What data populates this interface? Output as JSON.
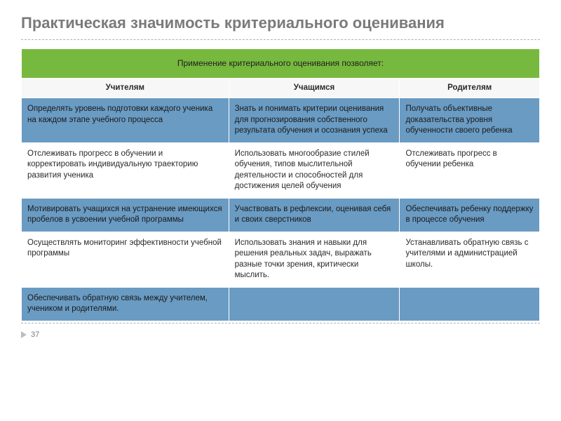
{
  "title": "Практическая значимость критериального оценивания",
  "table": {
    "banner": "Применение  критериального оценивания позволяет:",
    "columns": [
      "Учителям",
      "Учащимся",
      "Родителям"
    ],
    "col_widths": [
      "40%",
      "33%",
      "27%"
    ],
    "rows": [
      {
        "shade": "blue",
        "cells": [
          "Определять  уровень  подготовки каждого ученика на каждом этапе учебного процесса",
          "Знать и понимать критерии оценивания  для прогнозирования  собственного результата обучения и  осознания успеха",
          "Получать  объективные  доказательства уровня обученности своего ребенка"
        ]
      },
      {
        "shade": "white",
        "cells": [
          "Отслеживать  прогресс  в обучении и  корректировать  индивидуальную траекторию развития ученика",
          "Использовать многообразие стилей обучения, типов мыслительной деятельности и способностей для достижения целей  обучения",
          "Отслеживать прогресс в обучении ребенка"
        ]
      },
      {
        "shade": "blue",
        "cells": [
          "Мотивировать  учащихся на устранение имеющихся пробелов в усвоении учебной программы",
          "Участвовать в рефлексии, оценивая себя и своих сверстников",
          "Обеспечивать ребенку поддержку в процессе обучения"
        ]
      },
      {
        "shade": "white",
        "cells": [
          "Осуществлять мониторинг эффективности учебной программы",
          "Использовать знания и навыки для решения реальных задач, выражать разные точки зрения, критически мыслить.",
          "Устанавливать обратную связь с учителями и администрацией школы."
        ]
      },
      {
        "shade": "blue",
        "cells": [
          "Обеспечивать обратную  связь между учителем, учеником и родителями.",
          "",
          ""
        ]
      }
    ]
  },
  "page_number": "37",
  "colors": {
    "banner_bg": "#77b93f",
    "blue_row_bg": "#6a9bc3",
    "title_color": "#7a7a7a",
    "dash_color": "#b0b0b0"
  }
}
